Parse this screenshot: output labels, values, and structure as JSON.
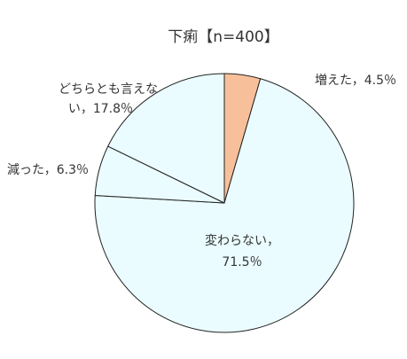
{
  "chart_data": {
    "type": "pie",
    "title": "下痢【n=400】",
    "slices": [
      {
        "label": "増えた",
        "value": 4.5,
        "display": "増えた，4.5％",
        "color": "#f8c09a"
      },
      {
        "label": "変わらない",
        "value": 71.5,
        "display_lines": [
          "変わらない，",
          "71.5％"
        ],
        "color": "#eafcff"
      },
      {
        "label": "減った",
        "value": 6.3,
        "display": "減った，6.3％",
        "color": "#eafcff"
      },
      {
        "label": "どちらとも言えない",
        "value": 17.8,
        "display_lines": [
          "どちらとも言えな",
          "い，17.8％"
        ],
        "color": "#eafcff"
      }
    ],
    "stroke_color": "#222222",
    "legend": "none"
  }
}
